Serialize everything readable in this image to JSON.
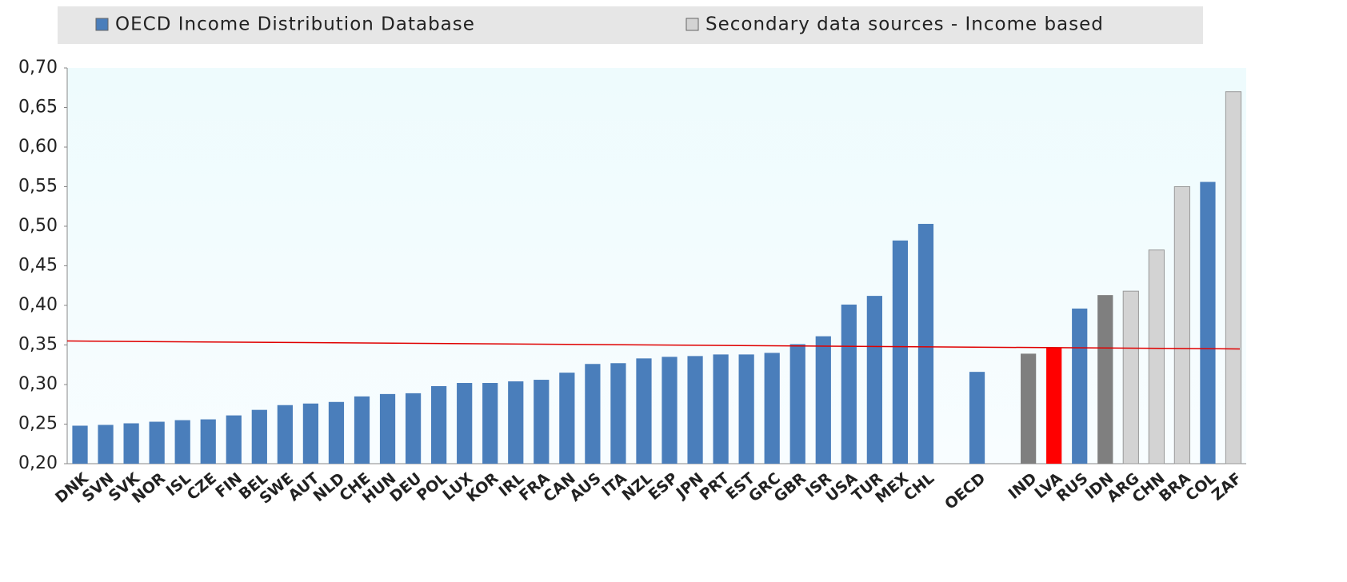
{
  "chart_data": {
    "type": "bar",
    "categories": [
      "DNK",
      "SVN",
      "SVK",
      "NOR",
      "ISL",
      "CZE",
      "FIN",
      "BEL",
      "SWE",
      "AUT",
      "NLD",
      "CHE",
      "HUN",
      "DEU",
      "POL",
      "LUX",
      "KOR",
      "IRL",
      "FRA",
      "CAN",
      "AUS",
      "ITA",
      "NZL",
      "ESP",
      "JPN",
      "PRT",
      "EST",
      "GRC",
      "GBR",
      "ISR",
      "USA",
      "TUR",
      "MEX",
      "CHL",
      null,
      "OECD",
      null,
      "IND",
      "LVA",
      "RUS",
      "IDN",
      "ARG",
      "CHN",
      "BRA",
      "COL",
      "ZAF"
    ],
    "series": [
      {
        "name": "OECD Income Distribution Database",
        "color": "#4a7ebb",
        "values": [
          0.248,
          0.249,
          0.251,
          0.253,
          0.255,
          0.256,
          0.261,
          0.268,
          0.274,
          0.276,
          0.278,
          0.285,
          0.288,
          0.289,
          0.298,
          0.302,
          0.302,
          0.304,
          0.306,
          0.315,
          0.326,
          0.327,
          0.333,
          0.335,
          0.336,
          0.338,
          0.338,
          0.34,
          0.351,
          0.361,
          0.401,
          0.412,
          0.482,
          0.503,
          null,
          0.316,
          null,
          null,
          null,
          0.396,
          null,
          null,
          null,
          null,
          0.556,
          null
        ]
      },
      {
        "name": "Secondary data sources - Income based",
        "color": "#d3d3d3",
        "values": [
          null,
          null,
          null,
          null,
          null,
          null,
          null,
          null,
          null,
          null,
          null,
          null,
          null,
          null,
          null,
          null,
          null,
          null,
          null,
          null,
          null,
          null,
          null,
          null,
          null,
          null,
          null,
          null,
          null,
          null,
          null,
          null,
          null,
          null,
          null,
          null,
          null,
          null,
          null,
          null,
          null,
          0.418,
          0.47,
          0.55,
          null,
          0.67
        ]
      },
      {
        "color": "#7f7f7f",
        "values": [
          null,
          null,
          null,
          null,
          null,
          null,
          null,
          null,
          null,
          null,
          null,
          null,
          null,
          null,
          null,
          null,
          null,
          null,
          null,
          null,
          null,
          null,
          null,
          null,
          null,
          null,
          null,
          null,
          null,
          null,
          null,
          null,
          null,
          null,
          null,
          null,
          null,
          0.339,
          null,
          null,
          0.413,
          null,
          null,
          null,
          null,
          null
        ]
      },
      {
        "color": "#ff0000",
        "values": [
          null,
          null,
          null,
          null,
          null,
          null,
          null,
          null,
          null,
          null,
          null,
          null,
          null,
          null,
          null,
          null,
          null,
          null,
          null,
          null,
          null,
          null,
          null,
          null,
          null,
          null,
          null,
          null,
          null,
          null,
          null,
          null,
          null,
          null,
          null,
          null,
          null,
          null,
          0.346,
          null,
          null,
          null,
          null,
          null,
          null,
          null
        ]
      }
    ],
    "ylim": [
      0.2,
      0.7
    ],
    "yticks": [
      {
        "value": 0.2,
        "label": "0,20"
      },
      {
        "value": 0.25,
        "label": "0,25"
      },
      {
        "value": 0.3,
        "label": "0,30"
      },
      {
        "value": 0.35,
        "label": "0,35"
      },
      {
        "value": 0.4,
        "label": "0,40"
      },
      {
        "value": 0.45,
        "label": "0,45"
      },
      {
        "value": 0.5,
        "label": "0,50"
      },
      {
        "value": 0.55,
        "label": "0,55"
      },
      {
        "value": 0.6,
        "label": "0,60"
      },
      {
        "value": 0.65,
        "label": "0,65"
      },
      {
        "value": 0.7,
        "label": "0,70"
      }
    ],
    "reference_line": {
      "y_start": 0.355,
      "y_end": 0.345,
      "color": "#e00000"
    }
  }
}
